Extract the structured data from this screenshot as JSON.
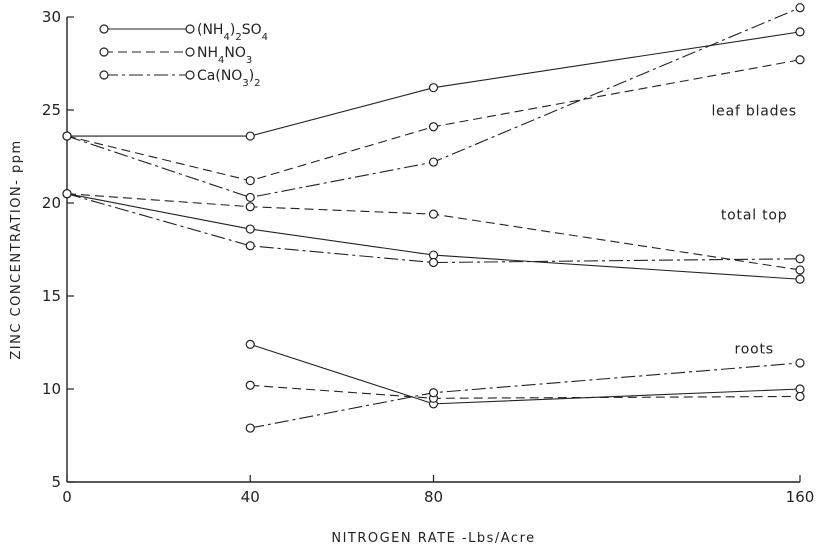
{
  "chart_data": {
    "type": "line",
    "xlabel": "NITROGEN RATE -Lbs/Acre",
    "ylabel": "ZINC CONCENTRATION- ppm",
    "xlim": [
      0,
      160
    ],
    "ylim": [
      5,
      30
    ],
    "x_ticks": [
      0,
      40,
      80,
      160
    ],
    "y_ticks": [
      5,
      10,
      15,
      20,
      25,
      30
    ],
    "grid": false,
    "legend_position": "top-left",
    "legend": [
      {
        "series": "ammonium_sulfate",
        "sym": "(NH",
        "sub1": "4",
        "mid": ")",
        "sub2": "2",
        "end": "SO",
        "sub3": "4",
        "dash": "solid"
      },
      {
        "series": "ammonium_nitrate",
        "sym": "NH",
        "sub1": "4",
        "mid": "NO",
        "sub2": "3",
        "end": "",
        "sub3": "",
        "dash": "dashed"
      },
      {
        "series": "calcium_nitrate",
        "sym": "Ca(NO",
        "sub1": "3",
        "mid": ")",
        "sub2": "2",
        "end": "",
        "sub3": "",
        "dash": "dashdot"
      }
    ],
    "annotations": [
      {
        "text": "leaf blades",
        "x": 150,
        "y": 24.7
      },
      {
        "text": "total top",
        "x": 150,
        "y": 19.1
      },
      {
        "text": "roots",
        "x": 150,
        "y": 11.9
      }
    ],
    "series": [
      {
        "id": "ammonium_sulfate",
        "group": "leaf blades",
        "dash": "solid",
        "x": [
          0,
          40,
          80,
          160
        ],
        "y": [
          23.6,
          23.6,
          26.2,
          29.2
        ]
      },
      {
        "id": "ammonium_nitrate",
        "group": "leaf blades",
        "dash": "dashed",
        "x": [
          0,
          40,
          80,
          160
        ],
        "y": [
          23.6,
          21.2,
          24.1,
          27.7
        ]
      },
      {
        "id": "calcium_nitrate",
        "group": "leaf blades",
        "dash": "dashdot",
        "x": [
          0,
          40,
          80,
          160
        ],
        "y": [
          23.6,
          20.3,
          22.2,
          30.5
        ]
      },
      {
        "id": "ammonium_sulfate",
        "group": "total top",
        "dash": "solid",
        "x": [
          0,
          40,
          80,
          160
        ],
        "y": [
          20.5,
          18.6,
          17.2,
          15.9
        ]
      },
      {
        "id": "ammonium_nitrate",
        "group": "total top",
        "dash": "dashed",
        "x": [
          0,
          40,
          80,
          160
        ],
        "y": [
          20.5,
          19.8,
          19.4,
          16.4
        ]
      },
      {
        "id": "calcium_nitrate",
        "group": "total top",
        "dash": "dashdot",
        "x": [
          0,
          40,
          80,
          160
        ],
        "y": [
          20.5,
          17.7,
          16.8,
          17.0
        ]
      },
      {
        "id": "ammonium_sulfate",
        "group": "roots",
        "dash": "solid",
        "x": [
          40,
          80,
          160
        ],
        "y": [
          12.4,
          9.2,
          10.0
        ]
      },
      {
        "id": "ammonium_nitrate",
        "group": "roots",
        "dash": "dashed",
        "x": [
          40,
          80,
          160
        ],
        "y": [
          10.2,
          9.5,
          9.6
        ]
      },
      {
        "id": "calcium_nitrate",
        "group": "roots",
        "dash": "dashdot",
        "x": [
          40,
          80,
          160
        ],
        "y": [
          7.9,
          9.8,
          11.4
        ]
      }
    ]
  }
}
